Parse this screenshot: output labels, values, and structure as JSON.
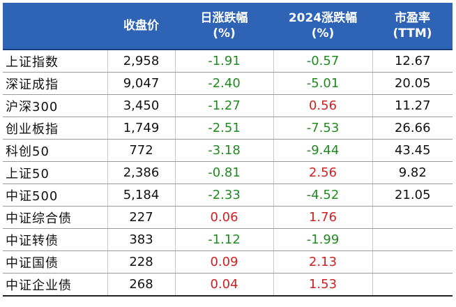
{
  "header": {
    "name": "",
    "close": "收盘价",
    "daily_l1": "日涨跌幅",
    "daily_l2": "(%)",
    "ytd_l1": "2024涨跌幅",
    "ytd_l2": "(%)",
    "pe_l1": "市盈率",
    "pe_l2": "(TTM)"
  },
  "colors": {
    "header_bg": "#2e63b6",
    "negative": "#1f8a1f",
    "positive": "#d02020"
  },
  "rows": [
    {
      "name": "上证指数",
      "close": "2,958",
      "daily": "-1.91",
      "ytd": "-0.57",
      "pe": "12.67"
    },
    {
      "name": "深证成指",
      "close": "9,047",
      "daily": "-2.40",
      "ytd": "-5.01",
      "pe": "20.05"
    },
    {
      "name": "沪深300",
      "close": "3,450",
      "daily": "-1.27",
      "ytd": "0.56",
      "pe": "11.27"
    },
    {
      "name": "创业板指",
      "close": "1,749",
      "daily": "-2.51",
      "ytd": "-7.53",
      "pe": "26.66"
    },
    {
      "name": "科创50",
      "close": "772",
      "daily": "-3.18",
      "ytd": "-9.44",
      "pe": "43.45"
    },
    {
      "name": "上证50",
      "close": "2,386",
      "daily": "-0.81",
      "ytd": "2.56",
      "pe": "9.82"
    },
    {
      "name": "中证500",
      "close": "5,184",
      "daily": "-2.33",
      "ytd": "-4.52",
      "pe": "21.05"
    },
    {
      "name": "中证综合债",
      "close": "227",
      "daily": "0.06",
      "ytd": "1.76",
      "pe": ""
    },
    {
      "name": "中证转债",
      "close": "383",
      "daily": "-1.12",
      "ytd": "-1.99",
      "pe": ""
    },
    {
      "name": "中证国债",
      "close": "228",
      "daily": "0.09",
      "ytd": "2.13",
      "pe": ""
    },
    {
      "name": "中证企业债",
      "close": "268",
      "daily": "0.04",
      "ytd": "1.53",
      "pe": ""
    }
  ]
}
